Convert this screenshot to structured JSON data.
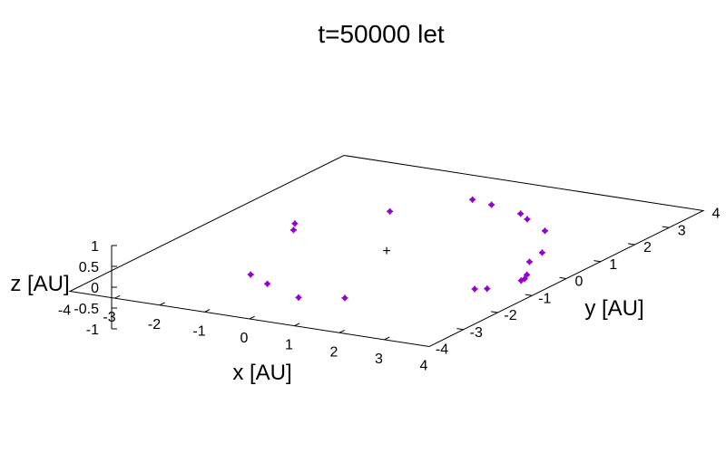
{
  "chart_data": {
    "type": "scatter",
    "title": "t=50000 let",
    "xlabel": "x [AU]",
    "ylabel": "y [AU]",
    "zlabel": "z [AU]",
    "xlim": [
      -4,
      4
    ],
    "ylim": [
      -4,
      4
    ],
    "zlim": [
      -1,
      1
    ],
    "x_ticks": [
      "-4",
      "-3",
      "-2",
      "-1",
      "0",
      "1",
      "2",
      "3",
      "4"
    ],
    "y_ticks": [
      "-4",
      "-3",
      "-2",
      "-1",
      "0",
      "1",
      "2",
      "3",
      "4"
    ],
    "z_ticks": [
      "1",
      "0.5",
      "0",
      "-0.5",
      "-1"
    ],
    "center_marker": "+",
    "point_color": "#9400d3",
    "series": [
      {
        "points": [
          {
            "x": -1.3,
            "y": 1.8,
            "z": 0
          },
          {
            "x": -2.5,
            "y": 0.6,
            "z": 0
          },
          {
            "x": -2.3,
            "y": 0.3,
            "z": 0
          },
          {
            "x": -0.3,
            "y": 2.9,
            "z": 0
          },
          {
            "x": 0.2,
            "y": 2.8,
            "z": 0
          },
          {
            "x": 1.0,
            "y": 2.6,
            "z": 0
          },
          {
            "x": 1.3,
            "y": 2.4,
            "z": 0
          },
          {
            "x": 2.0,
            "y": 2.0,
            "z": 0
          },
          {
            "x": 2.7,
            "y": 1.0,
            "z": 0
          },
          {
            "x": 2.8,
            "y": 0.5,
            "z": 0
          },
          {
            "x": 3.2,
            "y": -0.1,
            "z": 0
          },
          {
            "x": 3.3,
            "y": -0.3,
            "z": 0
          },
          {
            "x": 3.3,
            "y": -0.4,
            "z": 0
          },
          {
            "x": 3.0,
            "y": -1.0,
            "z": 0
          },
          {
            "x": 2.8,
            "y": -1.1,
            "z": 0
          },
          {
            "x": 0.9,
            "y": -2.4,
            "z": 0
          },
          {
            "x": 0.1,
            "y": -2.7,
            "z": 0
          },
          {
            "x": -0.9,
            "y": -2.3,
            "z": 0
          },
          {
            "x": -1.5,
            "y": -2.0,
            "z": 0
          }
        ]
      }
    ]
  }
}
